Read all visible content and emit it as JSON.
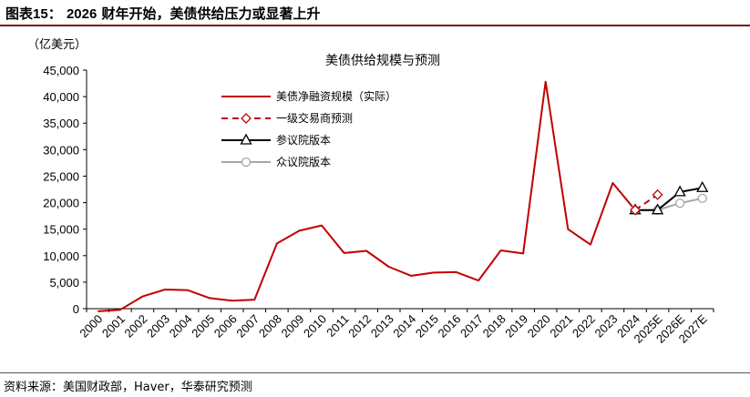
{
  "header": {
    "prefix": "图表",
    "number": "15：",
    "year": "2026",
    "text": "财年开始，美债供给压力或显著上升"
  },
  "source": "资料来源：美国财政部，Haver，华泰研究预测",
  "chart_data": {
    "type": "line",
    "title": "美债供给规模与预测",
    "unit_label": "（亿美元）",
    "categories": [
      "2000",
      "2001",
      "2002",
      "2003",
      "2004",
      "2005",
      "2006",
      "2007",
      "2008",
      "2009",
      "2010",
      "2011",
      "2012",
      "2013",
      "2014",
      "2015",
      "2016",
      "2017",
      "2018",
      "2019",
      "2020",
      "2021",
      "2022",
      "2023",
      "2024",
      "2025E",
      "2026E",
      "2027E"
    ],
    "ylim": [
      0,
      45000
    ],
    "yticks": [
      "0",
      "5,000",
      "10,000",
      "15,000",
      "20,000",
      "25,000",
      "30,000",
      "35,000",
      "40,000",
      "45,000"
    ],
    "legend_position": "top-left",
    "series": [
      {
        "name": "美债净融资规模（实际）",
        "color": "#c00000",
        "style": "solid",
        "marker": "none",
        "values": [
          -500,
          -200,
          2300,
          3600,
          3500,
          2000,
          1500,
          1700,
          12300,
          14700,
          15700,
          10500,
          10900,
          7900,
          6200,
          6800,
          6900,
          5300,
          11000,
          10400,
          42800,
          15000,
          12100,
          23700,
          18600,
          null,
          null,
          null
        ]
      },
      {
        "name": "一级交易商预测",
        "color": "#c00000",
        "style": "dashed",
        "marker": "diamond",
        "values": [
          null,
          null,
          null,
          null,
          null,
          null,
          null,
          null,
          null,
          null,
          null,
          null,
          null,
          null,
          null,
          null,
          null,
          null,
          null,
          null,
          null,
          null,
          null,
          null,
          18600,
          21500,
          null,
          null
        ]
      },
      {
        "name": "参议院版本",
        "color": "#000000",
        "style": "solid",
        "marker": "triangle",
        "values": [
          null,
          null,
          null,
          null,
          null,
          null,
          null,
          null,
          null,
          null,
          null,
          null,
          null,
          null,
          null,
          null,
          null,
          null,
          null,
          null,
          null,
          null,
          null,
          null,
          18600,
          18600,
          22000,
          22800
        ]
      },
      {
        "name": "众议院版本",
        "color": "#a6a6a6",
        "style": "solid",
        "marker": "circle",
        "values": [
          null,
          null,
          null,
          null,
          null,
          null,
          null,
          null,
          null,
          null,
          null,
          null,
          null,
          null,
          null,
          null,
          null,
          null,
          null,
          null,
          null,
          null,
          null,
          null,
          18600,
          18600,
          19900,
          20800
        ]
      }
    ]
  }
}
